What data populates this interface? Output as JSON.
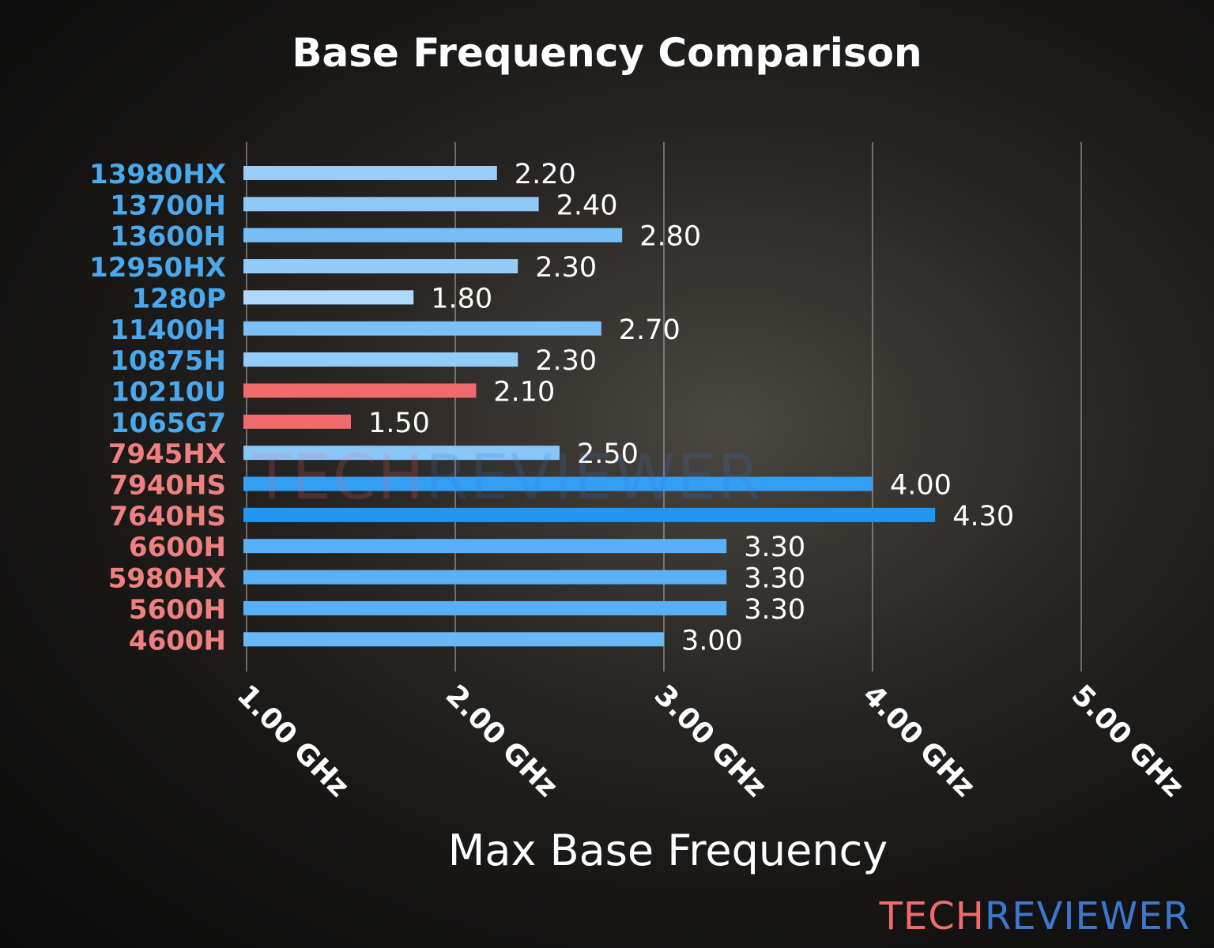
{
  "chart_data": {
    "type": "bar",
    "orientation": "horizontal",
    "title": "Base Frequency Comparison",
    "xlabel": "Max Base Frequency",
    "ylabel": "",
    "xlim": [
      1.0,
      5.0
    ],
    "xticks": [
      1.0,
      2.0,
      3.0,
      4.0,
      5.0
    ],
    "xtick_labels": [
      "1.00 GHz",
      "2.00 GHz",
      "3.00 GHz",
      "4.00 GHz",
      "5.00 GHz"
    ],
    "grid": "vertical",
    "categories": [
      "13980HX",
      "13700H",
      "13600H",
      "12950HX",
      "1280P",
      "11400H",
      "10875H",
      "10210U",
      "1065G7",
      "7945HX",
      "7940HS",
      "7640HS",
      "6600H",
      "5980HX",
      "5600H",
      "4600H"
    ],
    "values": [
      2.2,
      2.4,
      2.8,
      2.3,
      1.8,
      2.7,
      2.3,
      2.1,
      1.5,
      2.5,
      4.0,
      4.3,
      3.3,
      3.3,
      3.3,
      3.0
    ],
    "value_labels": [
      "2.20",
      "2.40",
      "2.80",
      "2.30",
      "1.80",
      "2.70",
      "2.30",
      "2.10",
      "1.50",
      "2.50",
      "4.00",
      "4.30",
      "3.30",
      "3.30",
      "3.30",
      "3.00"
    ],
    "vendor": [
      "intel",
      "intel",
      "intel",
      "intel",
      "intel",
      "intel",
      "intel",
      "intel",
      "intel",
      "amd",
      "amd",
      "amd",
      "amd",
      "amd",
      "amd",
      "amd"
    ],
    "highlighted": [
      "10210U",
      "1065G7"
    ],
    "colors": {
      "intel_label": "#4aa8ec",
      "amd_label": "#f08080",
      "highlight_bar": "#f06b6b",
      "bar_low": "#b0d8fa",
      "bar_high": "#2196f3"
    }
  },
  "watermark": {
    "part1": "TECH",
    "part2": "REVIEWER",
    "color1": "#f06b6b",
    "color2": "#3a78d0"
  }
}
